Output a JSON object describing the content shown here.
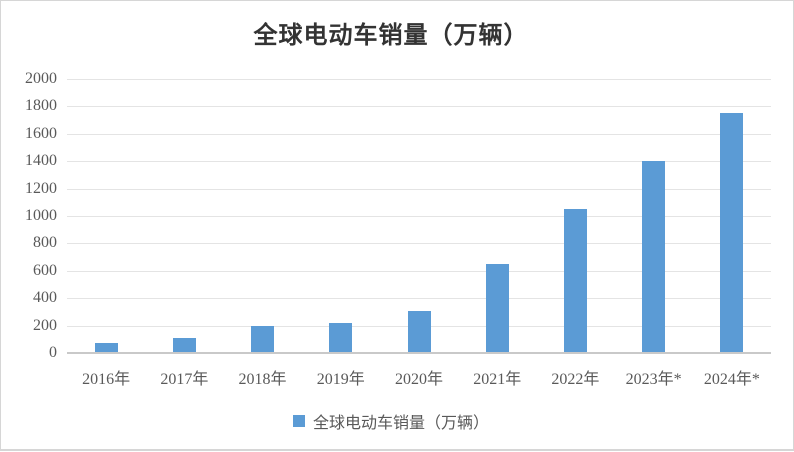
{
  "chart_data": {
    "type": "bar",
    "title": "全球电动车销量（万辆）",
    "categories": [
      "2016年",
      "2017年",
      "2018年",
      "2019年",
      "2020年",
      "2021年",
      "2022年",
      "2023年*",
      "2024年*"
    ],
    "values": [
      70,
      110,
      200,
      220,
      310,
      650,
      1050,
      1400,
      1750
    ],
    "series_name": "全球电动车销量（万辆）",
    "xlabel": "",
    "ylabel": "",
    "ylim": [
      0,
      2000
    ],
    "yticks": [
      0,
      200,
      400,
      600,
      800,
      1000,
      1200,
      1400,
      1600,
      1800,
      2000
    ],
    "grid": true,
    "legend_position": "bottom",
    "colors": {
      "bar": "#5B9BD5",
      "gridline": "#E4E4E4",
      "axis_line": "#C9C9C9",
      "tick_label": "#595959",
      "title": "#333333",
      "frame_border": "#D6D6D6"
    }
  },
  "legend": {
    "label": "全球电动车销量（万辆）",
    "marker_color": "#5B9BD5"
  }
}
